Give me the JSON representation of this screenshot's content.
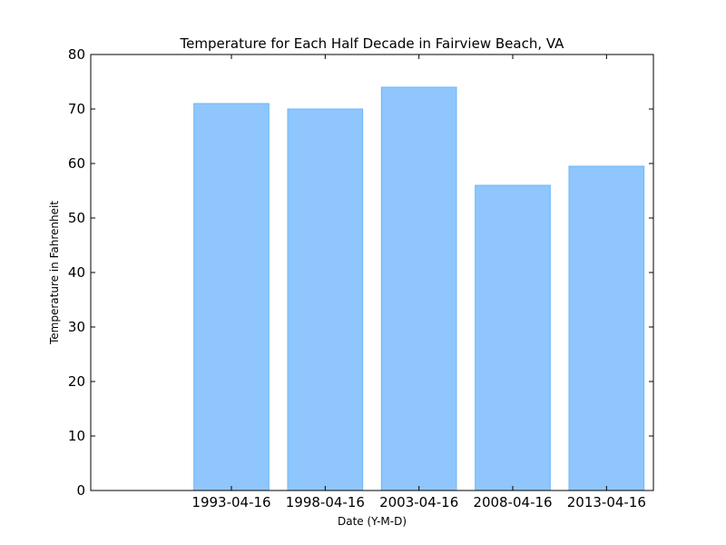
{
  "chart_data": {
    "type": "bar",
    "title": "Temperature for Each Half Decade in Fairview Beach, VA",
    "xlabel": "Date (Y-M-D)",
    "ylabel": "Temperature in Fahrenheit",
    "categories": [
      "1993-04-16",
      "1998-04-16",
      "2003-04-16",
      "2008-04-16",
      "2013-04-16"
    ],
    "values": [
      71,
      70,
      74,
      56,
      59.5
    ],
    "ylim": [
      0,
      80
    ],
    "yticks": [
      0,
      10,
      20,
      30,
      40,
      50,
      60,
      70,
      80
    ],
    "grid": false,
    "colors": {
      "bar_fill": "#8fc6fd",
      "bar_stroke": "#6cb6fb",
      "axes": "#000000"
    }
  }
}
